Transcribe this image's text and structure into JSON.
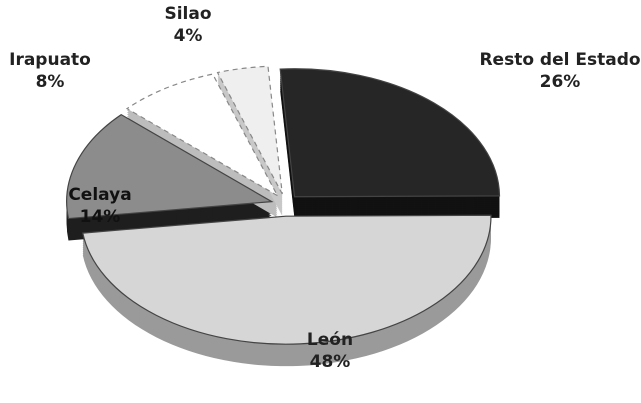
{
  "chart_data": {
    "type": "pie",
    "categories": [
      "Resto del Estado",
      "León",
      "Celaya",
      "Irapuato",
      "Silao"
    ],
    "values": [
      26,
      48,
      14,
      8,
      4
    ],
    "value_labels": [
      "26%",
      "48%",
      "14%",
      "8%",
      "4%"
    ],
    "colors": [
      "#262626",
      "#d6d6d6",
      "#8c8c8c",
      "#ffffff",
      "#efefef"
    ],
    "side_colors": [
      "#111111",
      "#9a9a9a",
      "#1e1e1e",
      "#bdbdbd",
      "#c8c8c8"
    ]
  }
}
